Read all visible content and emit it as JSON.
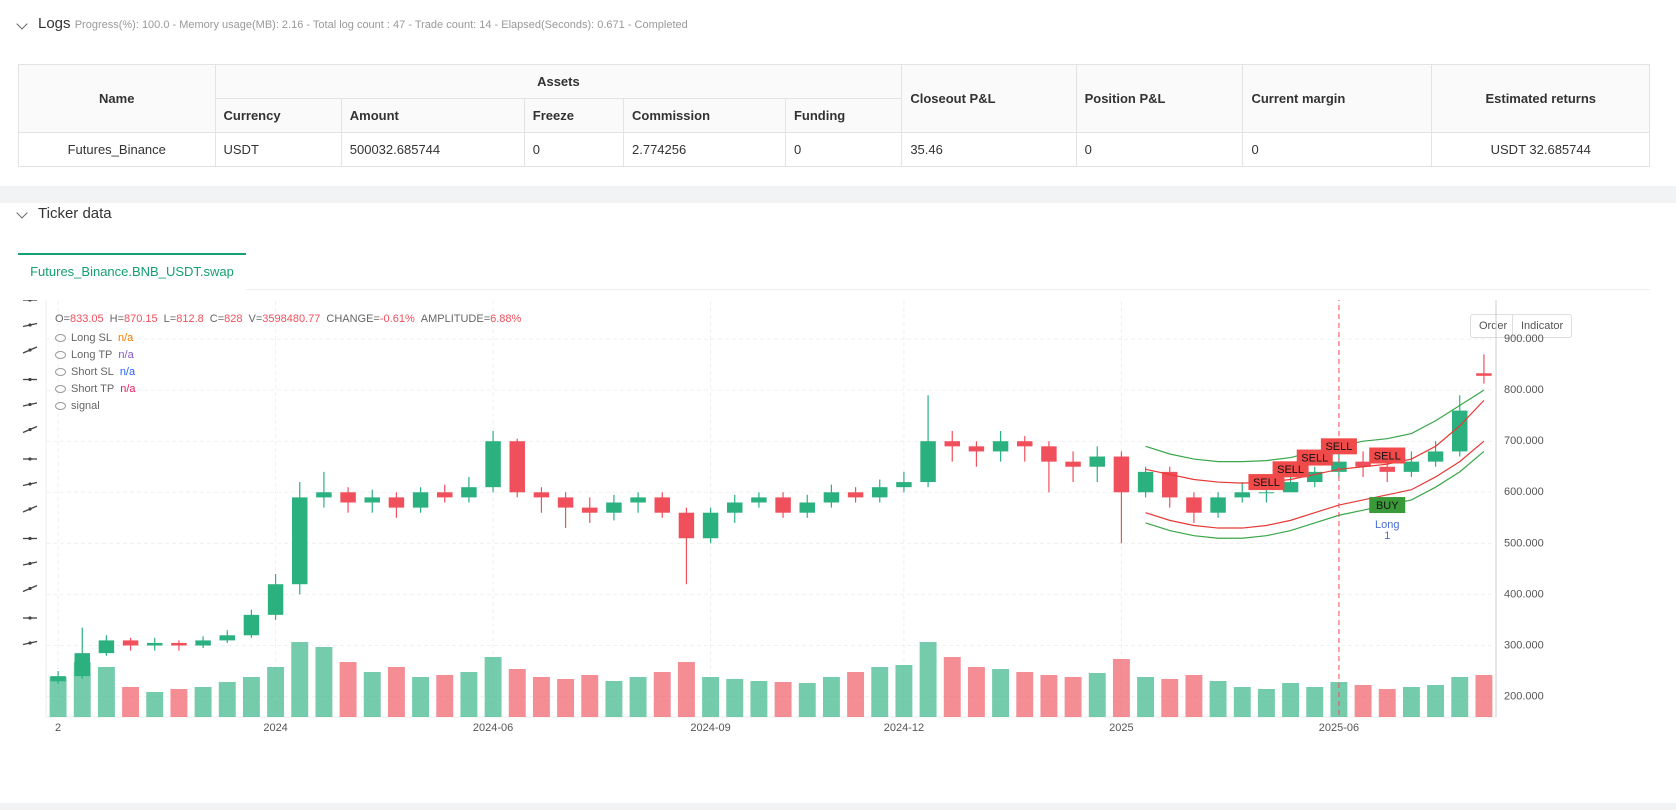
{
  "logs": {
    "title": "Logs",
    "status": "Progress(%): 100.0  - Memory usage(MB): 2.16  - Total log count : 47  - Trade count:  14  - Elapsed(Seconds): 0.671  - Completed"
  },
  "table": {
    "headers": {
      "name": "Name",
      "assets": "Assets",
      "currency": "Currency",
      "amount": "Amount",
      "freeze": "Freeze",
      "commission": "Commission",
      "funding": "Funding",
      "closeout": "Closeout P&L",
      "position": "Position P&L",
      "margin": "Current margin",
      "returns": "Estimated returns"
    },
    "rows": [
      [
        "Futures_Binance",
        "USDT",
        "500032.685744",
        "0",
        "2.774256",
        "0",
        "35.46",
        "0",
        "0",
        "USDT 32.685744"
      ]
    ]
  },
  "ticker": {
    "title": "Ticker data",
    "tab": "Futures_Binance.BNB_USDT.swap",
    "buttons": [
      "Order",
      "Indicator"
    ]
  },
  "chart_data": {
    "type": "candlestick",
    "header": [
      {
        "label": "O=",
        "value": "833.05"
      },
      {
        "label": "H=",
        "value": "870.15"
      },
      {
        "label": "L=",
        "value": "812.8"
      },
      {
        "label": "C=",
        "value": "828"
      },
      {
        "label": "V=",
        "value": "3598480.77"
      },
      {
        "label": "CHANGE=",
        "value": "-0.61%"
      },
      {
        "label": "AMPLITUDE=",
        "value": "6.88%"
      }
    ],
    "legend": [
      {
        "name": "Long SL",
        "value": "n/a",
        "color": "#f57c00"
      },
      {
        "name": "Long TP",
        "value": "n/a",
        "color": "#7e57c2"
      },
      {
        "name": "Short SL",
        "value": "n/a",
        "color": "#2962ff"
      },
      {
        "name": "Short TP",
        "value": "n/a",
        "color": "#e91e63"
      },
      {
        "name": "signal"
      }
    ],
    "categories": [
      "2",
      null,
      null,
      null,
      null,
      null,
      null,
      null,
      null,
      "2024",
      null,
      null,
      null,
      null,
      null,
      null,
      null,
      null,
      "2024-06",
      null,
      null,
      null,
      null,
      null,
      null,
      null,
      null,
      "2024-09",
      null,
      null,
      null,
      null,
      null,
      null,
      null,
      "2024-12",
      null,
      null,
      null,
      null,
      null,
      null,
      null,
      null,
      "2025",
      null,
      null,
      null,
      null,
      null,
      null,
      null,
      null,
      "2025-06",
      null,
      null,
      null,
      null,
      null,
      null
    ],
    "open": [
      230,
      240,
      285,
      310,
      300,
      305,
      300,
      310,
      320,
      360,
      420,
      590,
      600,
      580,
      590,
      570,
      600,
      590,
      610,
      700,
      600,
      590,
      570,
      560,
      580,
      590,
      560,
      510,
      560,
      580,
      590,
      560,
      580,
      600,
      590,
      610,
      620,
      700,
      690,
      680,
      700,
      690,
      660,
      650,
      670,
      600,
      640,
      590,
      560,
      590,
      600,
      600,
      620,
      640,
      660,
      650,
      640,
      660,
      680,
      833.05
    ],
    "high": [
      250,
      335,
      320,
      315,
      315,
      310,
      318,
      330,
      370,
      440,
      620,
      640,
      610,
      605,
      600,
      610,
      615,
      630,
      720,
      705,
      610,
      600,
      590,
      595,
      600,
      600,
      570,
      570,
      595,
      600,
      600,
      595,
      615,
      610,
      625,
      640,
      790,
      720,
      700,
      720,
      710,
      700,
      680,
      690,
      680,
      650,
      650,
      600,
      600,
      620,
      615,
      630,
      650,
      680,
      680,
      660,
      680,
      700,
      790,
      870.15
    ],
    "low": [
      225,
      235,
      280,
      290,
      290,
      290,
      295,
      305,
      315,
      350,
      400,
      570,
      560,
      560,
      550,
      560,
      580,
      580,
      600,
      590,
      560,
      530,
      540,
      545,
      560,
      550,
      420,
      500,
      540,
      570,
      550,
      550,
      570,
      580,
      580,
      600,
      610,
      660,
      650,
      660,
      660,
      600,
      620,
      620,
      500,
      590,
      570,
      540,
      550,
      580,
      580,
      600,
      610,
      630,
      630,
      620,
      630,
      650,
      670,
      812.8
    ],
    "close": [
      240,
      285,
      310,
      300,
      305,
      300,
      310,
      320,
      360,
      420,
      590,
      600,
      580,
      590,
      570,
      600,
      590,
      610,
      700,
      600,
      590,
      570,
      560,
      580,
      590,
      560,
      510,
      560,
      580,
      590,
      560,
      580,
      600,
      590,
      610,
      620,
      700,
      690,
      680,
      700,
      690,
      660,
      650,
      670,
      600,
      640,
      590,
      560,
      590,
      600,
      600,
      620,
      640,
      660,
      650,
      640,
      660,
      680,
      760,
      828
    ],
    "volume": [
      40,
      55,
      50,
      30,
      25,
      28,
      30,
      35,
      40,
      50,
      75,
      70,
      55,
      45,
      50,
      40,
      42,
      45,
      60,
      48,
      40,
      38,
      42,
      36,
      40,
      45,
      55,
      40,
      38,
      36,
      35,
      34,
      40,
      45,
      50,
      52,
      75,
      60,
      50,
      48,
      45,
      42,
      40,
      44,
      58,
      40,
      38,
      42,
      36,
      30,
      28,
      34,
      30,
      35,
      32,
      28,
      30,
      32,
      40,
      42
    ],
    "volume_lim": [
      0,
      100
    ],
    "up_color": "#2bb07f",
    "down_color": "#f0505c",
    "bands": [
      {
        "color": "#3aa64a",
        "values": [
          null,
          null,
          null,
          null,
          null,
          null,
          null,
          null,
          null,
          null,
          null,
          null,
          null,
          null,
          null,
          null,
          null,
          null,
          null,
          null,
          null,
          null,
          null,
          null,
          null,
          null,
          null,
          null,
          null,
          null,
          null,
          null,
          null,
          null,
          null,
          null,
          null,
          null,
          null,
          null,
          null,
          null,
          null,
          null,
          null,
          690,
          675,
          665,
          660,
          660,
          662,
          668,
          680,
          690,
          700,
          705,
          715,
          740,
          770,
          800
        ]
      },
      {
        "color": "#e53935",
        "values": [
          null,
          null,
          null,
          null,
          null,
          null,
          null,
          null,
          null,
          null,
          null,
          null,
          null,
          null,
          null,
          null,
          null,
          null,
          null,
          null,
          null,
          null,
          null,
          null,
          null,
          null,
          null,
          null,
          null,
          null,
          null,
          null,
          null,
          null,
          null,
          null,
          null,
          null,
          null,
          null,
          null,
          null,
          null,
          null,
          null,
          645,
          635,
          625,
          620,
          618,
          620,
          625,
          635,
          645,
          650,
          655,
          665,
          690,
          730,
          780
        ]
      },
      {
        "color": "#e53935",
        "values": [
          null,
          null,
          null,
          null,
          null,
          null,
          null,
          null,
          null,
          null,
          null,
          null,
          null,
          null,
          null,
          null,
          null,
          null,
          null,
          null,
          null,
          null,
          null,
          null,
          null,
          null,
          null,
          null,
          null,
          null,
          null,
          null,
          null,
          null,
          null,
          null,
          null,
          null,
          null,
          null,
          null,
          null,
          null,
          null,
          null,
          560,
          545,
          535,
          530,
          530,
          535,
          545,
          560,
          575,
          585,
          595,
          605,
          630,
          660,
          700
        ]
      },
      {
        "color": "#3aa64a",
        "values": [
          null,
          null,
          null,
          null,
          null,
          null,
          null,
          null,
          null,
          null,
          null,
          null,
          null,
          null,
          null,
          null,
          null,
          null,
          null,
          null,
          null,
          null,
          null,
          null,
          null,
          null,
          null,
          null,
          null,
          null,
          null,
          null,
          null,
          null,
          null,
          null,
          null,
          null,
          null,
          null,
          null,
          null,
          null,
          null,
          null,
          540,
          525,
          515,
          510,
          510,
          515,
          525,
          540,
          555,
          565,
          575,
          585,
          610,
          640,
          680
        ]
      }
    ],
    "signals": [
      {
        "text": "SELL",
        "index": 50,
        "value": 620
      },
      {
        "text": "SELL",
        "index": 51,
        "value": 645
      },
      {
        "text": "SELL",
        "index": 52,
        "value": 668
      },
      {
        "text": "SELL",
        "index": 53,
        "value": 690
      },
      {
        "text": "SELL",
        "index": 55,
        "value": 672
      },
      {
        "text": "BUY",
        "index": 55,
        "value": 575
      }
    ],
    "buy_note": [
      "Long",
      "1"
    ],
    "crosshair_index": 53,
    "ylim": [
      160,
      1000
    ],
    "yticks": [
      {
        "value": 200,
        "label": "200.000"
      },
      {
        "value": 300,
        "label": "300.000"
      },
      {
        "value": 400,
        "label": "400.000"
      },
      {
        "value": 500,
        "label": "500.000"
      },
      {
        "value": 600,
        "label": "600.000"
      },
      {
        "value": 700,
        "label": "700.000"
      },
      {
        "value": 800,
        "label": "800.000"
      },
      {
        "value": 900,
        "label": "900.000"
      }
    ],
    "grid": true
  }
}
